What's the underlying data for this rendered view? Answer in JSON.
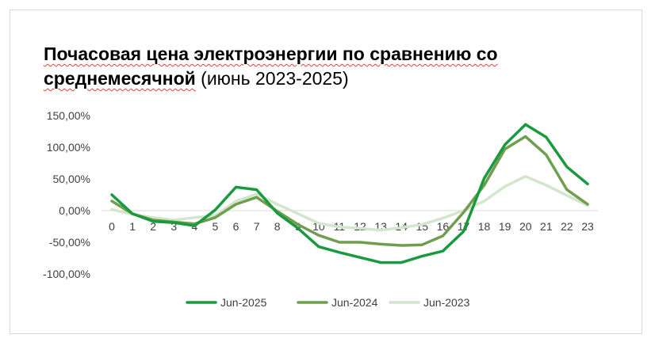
{
  "chart_data": {
    "type": "line",
    "title_bold": "Почасовая цена электроэнергии по сравнению со среднемесячной",
    "title_normal": " (июнь 2023-2025)",
    "x": [
      0,
      1,
      2,
      3,
      4,
      5,
      6,
      7,
      8,
      9,
      10,
      11,
      12,
      13,
      14,
      15,
      16,
      17,
      18,
      19,
      20,
      21,
      22,
      23
    ],
    "ylim": [
      -100,
      150
    ],
    "yticks": [
      -100,
      -50,
      0,
      50,
      100,
      150
    ],
    "ytick_labels": [
      "-100,00%",
      "-50,00%",
      "0,00%",
      "50,00%",
      "100,00%",
      "150,00%"
    ],
    "legend_position": "bottom",
    "grid": false,
    "series": [
      {
        "name": "Jun-2025",
        "color": "#1a9a3e",
        "values": [
          25,
          -5,
          -17,
          -19,
          -24,
          1,
          37,
          33,
          -4,
          -28,
          -57,
          -66,
          -74,
          -82,
          -82,
          -72,
          -64,
          -33,
          51,
          104,
          136,
          116,
          69,
          42
        ]
      },
      {
        "name": "Jun-2024",
        "color": "#6f9e4f",
        "values": [
          15,
          -5,
          -15,
          -18,
          -21,
          -11,
          10,
          21,
          -1,
          -22,
          -39,
          -50,
          -50,
          -53,
          -55,
          -54,
          -40,
          -3,
          40,
          97,
          117,
          88,
          33,
          10
        ]
      },
      {
        "name": "Jun-2023",
        "color": "#d2e6cd",
        "values": [
          2,
          -6,
          -11,
          -15,
          -11,
          -8,
          15,
          26,
          10,
          -5,
          -20,
          -26,
          -28,
          -31,
          -27,
          -22,
          -12,
          0,
          15,
          38,
          54,
          40,
          24,
          8
        ]
      }
    ]
  }
}
